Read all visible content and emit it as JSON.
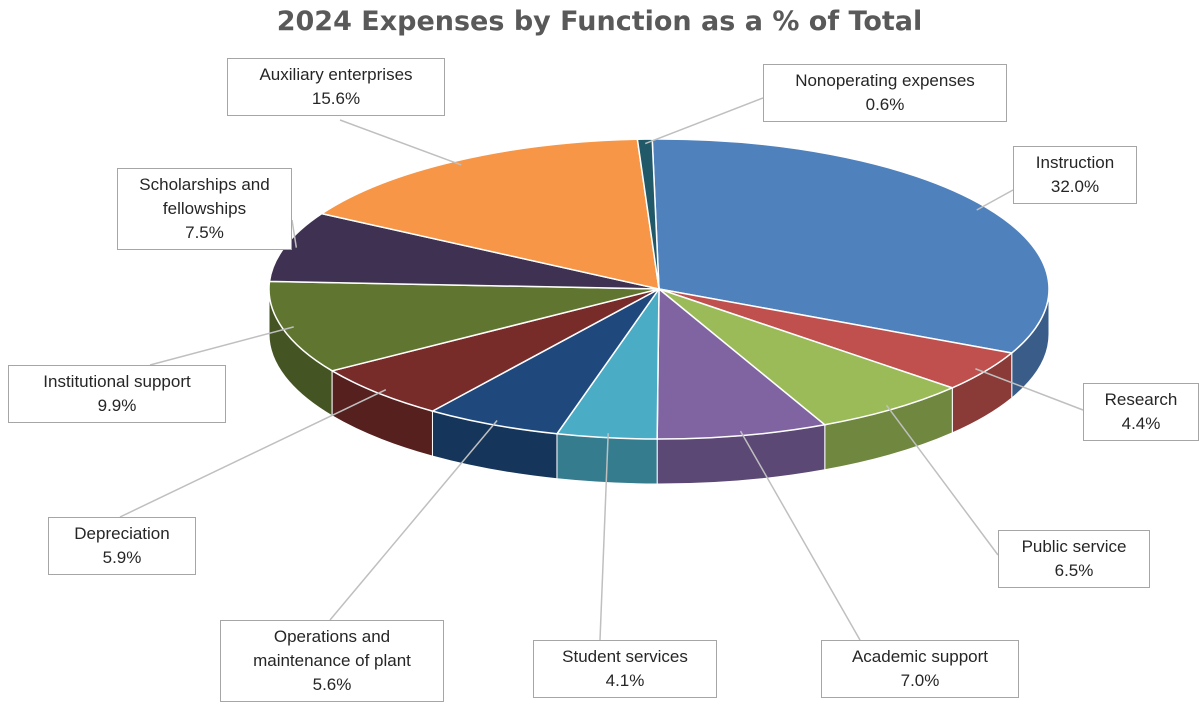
{
  "chart_data": {
    "type": "pie",
    "title": "2024 Expenses by Function as a % of Total",
    "unit": "%",
    "categories": [
      "Instruction",
      "Research",
      "Public service",
      "Academic support",
      "Student services",
      "Operations and maintenance of plant",
      "Depreciation",
      "Institutional support",
      "Scholarships and fellowships",
      "Auxiliary enterprises",
      "Nonoperating expenses"
    ],
    "values": [
      32.0,
      4.4,
      6.5,
      7.0,
      4.1,
      5.6,
      5.9,
      9.9,
      7.5,
      15.6,
      0.6
    ],
    "value_labels": [
      "32.0%",
      "4.4%",
      "6.5%",
      "7.0%",
      "4.1%",
      "5.6%",
      "5.9%",
      "9.9%",
      "7.5%",
      "15.6%",
      "0.6%"
    ],
    "label_lines": [
      [
        "Instruction"
      ],
      [
        "Research"
      ],
      [
        "Public service"
      ],
      [
        "Academic support"
      ],
      [
        "Student services"
      ],
      [
        "Operations and",
        "maintenance of plant"
      ],
      [
        "Depreciation"
      ],
      [
        "Institutional support"
      ],
      [
        "Scholarships and",
        "fellowships"
      ],
      [
        "Auxiliary enterprises"
      ],
      [
        "Nonoperating expenses"
      ]
    ],
    "colors": [
      "#4F81BD",
      "#C0504D",
      "#9BBB59",
      "#8064A2",
      "#4BACC6",
      "#1F497D",
      "#772C2A",
      "#5F7530",
      "#3F3151",
      "#F79646",
      "#215968"
    ],
    "style": "3d-pie",
    "legend": "none"
  }
}
